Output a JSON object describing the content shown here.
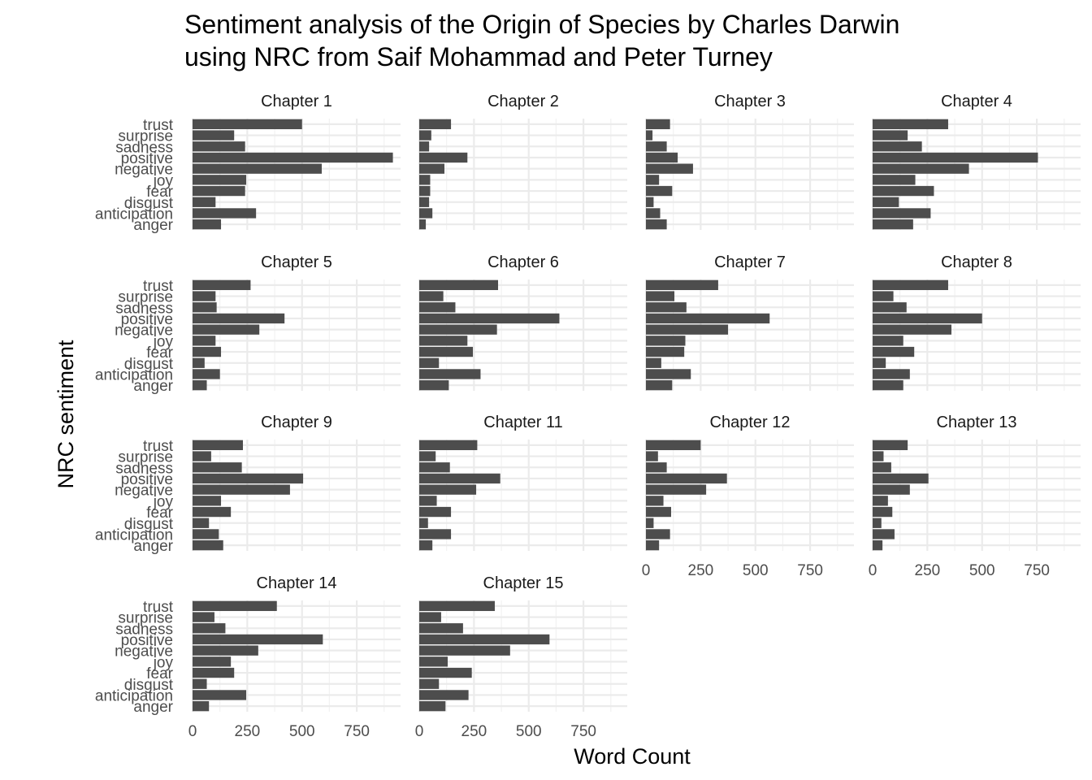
{
  "chart_data": {
    "type": "bar",
    "orientation": "horizontal",
    "title_lines": [
      "Sentiment analysis of the Origin of Species by Charles Darwin",
      "using NRC from Saif Mohammad and Peter Turney"
    ],
    "xlabel": "Word Count",
    "ylabel": "NRC sentiment",
    "categories": [
      "anger",
      "anticipation",
      "disgust",
      "fear",
      "joy",
      "negative",
      "positive",
      "sadness",
      "surprise",
      "trust"
    ],
    "xlim": [
      0,
      950
    ],
    "xticks": [
      0,
      250,
      500,
      750
    ],
    "grid": true,
    "bar_color": "#4d4d4d",
    "facets": [
      {
        "name": "Chapter 1",
        "values": [
          130,
          290,
          105,
          240,
          245,
          590,
          915,
          240,
          190,
          500
        ]
      },
      {
        "name": "Chapter 2",
        "values": [
          30,
          60,
          45,
          50,
          50,
          115,
          220,
          45,
          55,
          145
        ]
      },
      {
        "name": "Chapter 3",
        "values": [
          95,
          65,
          35,
          120,
          60,
          215,
          145,
          95,
          30,
          110
        ]
      },
      {
        "name": "Chapter 4",
        "values": [
          185,
          265,
          120,
          280,
          195,
          440,
          755,
          225,
          160,
          345
        ]
      },
      {
        "name": "Chapter 5",
        "values": [
          65,
          125,
          55,
          130,
          105,
          305,
          420,
          110,
          105,
          265
        ]
      },
      {
        "name": "Chapter 6",
        "values": [
          135,
          280,
          90,
          245,
          220,
          355,
          640,
          165,
          110,
          360
        ]
      },
      {
        "name": "Chapter 7",
        "values": [
          120,
          205,
          70,
          175,
          180,
          375,
          565,
          185,
          130,
          330
        ]
      },
      {
        "name": "Chapter 8",
        "values": [
          140,
          170,
          60,
          190,
          140,
          360,
          500,
          155,
          95,
          345
        ]
      },
      {
        "name": "Chapter 9",
        "values": [
          140,
          120,
          75,
          175,
          130,
          445,
          505,
          225,
          85,
          230
        ]
      },
      {
        "name": "Chapter 11",
        "values": [
          60,
          145,
          40,
          145,
          80,
          260,
          370,
          140,
          75,
          265
        ]
      },
      {
        "name": "Chapter 12",
        "values": [
          60,
          110,
          35,
          115,
          80,
          275,
          370,
          95,
          55,
          250
        ]
      },
      {
        "name": "Chapter 13",
        "values": [
          45,
          100,
          40,
          90,
          70,
          170,
          255,
          85,
          50,
          160
        ]
      },
      {
        "name": "Chapter 14",
        "values": [
          75,
          245,
          65,
          190,
          175,
          300,
          595,
          150,
          100,
          385
        ]
      },
      {
        "name": "Chapter 15",
        "values": [
          120,
          225,
          90,
          240,
          130,
          415,
          595,
          200,
          100,
          345
        ]
      }
    ]
  }
}
